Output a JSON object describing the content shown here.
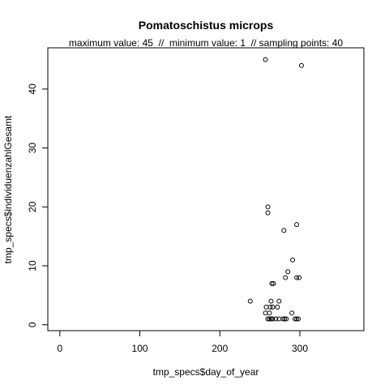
{
  "chart_data": {
    "type": "scatter",
    "title": "Pomatoschistus microps",
    "subtitle": "maximum value: 45  //  minimum value: 1  // sampling points: 40",
    "xlabel": "tmp_specs$day_of_year",
    "ylabel": "tmp_specs$individuenzahlGesamt",
    "xlim": [
      -15,
      380
    ],
    "ylim": [
      -1,
      47
    ],
    "xticks": [
      0,
      100,
      200,
      300
    ],
    "yticks": [
      0,
      10,
      20,
      30,
      40
    ],
    "marker": "open-circle",
    "points": [
      {
        "x": 257,
        "y": 45
      },
      {
        "x": 302,
        "y": 44
      },
      {
        "x": 260,
        "y": 20
      },
      {
        "x": 260,
        "y": 19
      },
      {
        "x": 296,
        "y": 17
      },
      {
        "x": 280,
        "y": 16
      },
      {
        "x": 291,
        "y": 11
      },
      {
        "x": 285,
        "y": 9
      },
      {
        "x": 282,
        "y": 8
      },
      {
        "x": 296,
        "y": 8
      },
      {
        "x": 299,
        "y": 8
      },
      {
        "x": 265,
        "y": 7
      },
      {
        "x": 267,
        "y": 7
      },
      {
        "x": 238,
        "y": 4
      },
      {
        "x": 264,
        "y": 4
      },
      {
        "x": 274,
        "y": 4
      },
      {
        "x": 258,
        "y": 3
      },
      {
        "x": 263,
        "y": 3
      },
      {
        "x": 266,
        "y": 3
      },
      {
        "x": 272,
        "y": 3
      },
      {
        "x": 257,
        "y": 2
      },
      {
        "x": 262,
        "y": 2
      },
      {
        "x": 290,
        "y": 2
      },
      {
        "x": 260,
        "y": 1
      },
      {
        "x": 262,
        "y": 1
      },
      {
        "x": 264,
        "y": 1
      },
      {
        "x": 266,
        "y": 1
      },
      {
        "x": 270,
        "y": 1
      },
      {
        "x": 274,
        "y": 1
      },
      {
        "x": 279,
        "y": 1
      },
      {
        "x": 281,
        "y": 1
      },
      {
        "x": 283,
        "y": 1
      },
      {
        "x": 294,
        "y": 1
      },
      {
        "x": 296,
        "y": 1
      },
      {
        "x": 298,
        "y": 1
      }
    ]
  }
}
